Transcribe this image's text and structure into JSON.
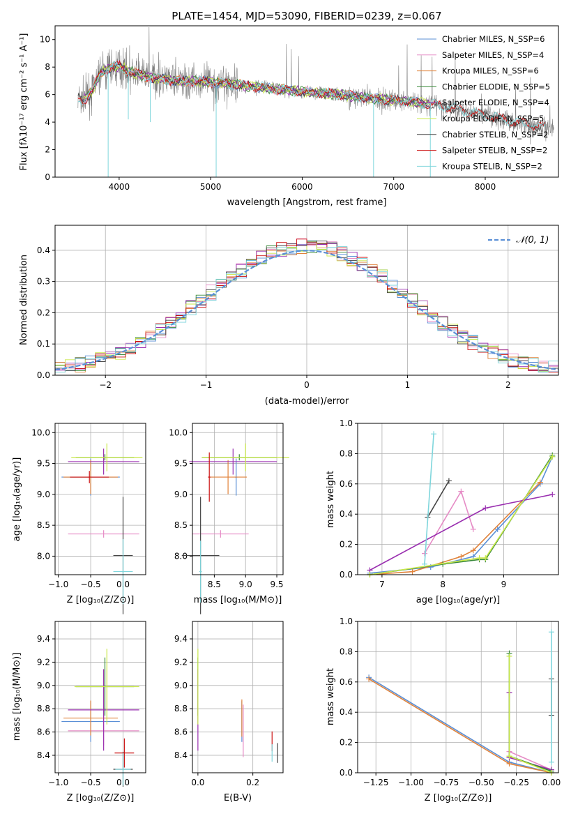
{
  "colors": {
    "chab_miles": "#5a8fd6",
    "salp_miles": "#e68cc6",
    "krou_miles": "#e0823a",
    "chab_elodie": "#3a8a3a",
    "salp_elodie": "#9a2fb0",
    "krou_elodie": "#c9e84a",
    "chab_stelib": "#444444",
    "salp_stelib": "#cc1111",
    "krou_stelib": "#7fd6dc",
    "data": "#808080",
    "normal": "#5a8fd6"
  },
  "chart_data": [
    {
      "id": "spectrum",
      "type": "line",
      "title": "PLATE=1454, MJD=53090, FIBERID=0239, z=0.067",
      "xlabel": "wavelength [Angstrom, rest frame]",
      "ylabel": "Flux [fλ10⁻¹⁷ erg cm⁻² s⁻¹ A⁻¹]",
      "xlim": [
        3300,
        8800
      ],
      "ylim": [
        0,
        11
      ],
      "xticks": [
        "4000",
        "5000",
        "6000",
        "7000",
        "8000"
      ],
      "yticks": [
        "0",
        "2",
        "4",
        "6",
        "8",
        "10"
      ],
      "legend_position": "top-right",
      "legend": [
        "Chabrier MILES, N_SSP=6",
        "Salpeter MILES, N_SSP=4",
        "Kroupa MILES, N_SSP=6",
        "Chabrier ELODIE, N_SSP=5",
        "Salpeter ELODIE, N_SSP=4",
        "Kroupa ELODIE, N_SSP=5",
        "Chabrier STELIB, N_SSP=2",
        "Salpeter STELIB, N_SSP=2",
        "Kroupa STELIB, N_SSP=2"
      ],
      "continuum": {
        "x": [
          3550,
          3600,
          3700,
          3800,
          3900,
          4000,
          4100,
          4300,
          4500,
          4700,
          5000,
          5300,
          5600,
          6000,
          6400,
          6800,
          7200,
          7400,
          7600,
          8000,
          8400,
          8800
        ],
        "y": [
          5.7,
          5.5,
          6.2,
          7.6,
          7.9,
          8.1,
          7.7,
          7.3,
          7.1,
          7.0,
          6.9,
          6.7,
          6.5,
          6.2,
          6.0,
          5.7,
          5.5,
          5.3,
          5.1,
          4.5,
          3.9,
          3.5
        ]
      }
    },
    {
      "id": "residuals",
      "type": "histogram",
      "xlabel": "(data-model)/error",
      "ylabel": "Normed distribution",
      "xlim": [
        -2.5,
        2.5
      ],
      "ylim": [
        0,
        0.48
      ],
      "xticks": [
        "−2",
        "−1",
        "0",
        "1",
        "2"
      ],
      "yticks": [
        "0.0",
        "0.1",
        "0.2",
        "0.3",
        "0.4"
      ],
      "legend_position": "top-right",
      "legend": [
        "𝒩(0, 1)"
      ],
      "bin_width": 0.1
    },
    {
      "id": "age_vs_Z",
      "type": "scatter",
      "xlabel": "Z [log₁₀(Z/Z⊙)]",
      "ylabel": "age  [log₁₀(age/yr)]",
      "xlim": [
        -1.05,
        0.35
      ],
      "ylim": [
        7.7,
        10.15
      ],
      "xticks": [
        "−1.0",
        "−0.5",
        "0.0"
      ],
      "yticks": [
        "8.0",
        "8.5",
        "9.0",
        "9.5",
        "10.0"
      ],
      "points": [
        {
          "k": "chab_miles",
          "x": -0.5,
          "y": 9.28,
          "xe": 0.45,
          "ye": 0.6
        },
        {
          "k": "salp_miles",
          "x": -0.3,
          "y": 8.36,
          "xe": 0.55,
          "ye": 0.12
        },
        {
          "k": "krou_miles",
          "x": -0.5,
          "y": 9.28,
          "xe": 0.42,
          "ye": 0.55
        },
        {
          "k": "chab_elodie",
          "x": -0.28,
          "y": 9.6,
          "xe": 0.45,
          "ye": 0.1
        },
        {
          "k": "salp_elodie",
          "x": -0.3,
          "y": 9.53,
          "xe": 0.55,
          "ye": 0.42
        },
        {
          "k": "krou_elodie",
          "x": -0.25,
          "y": 9.6,
          "xe": 0.55,
          "ye": 0.45
        },
        {
          "k": "chab_stelib",
          "x": 0.0,
          "y": 8.01,
          "xe": 0.15,
          "ye": 1.9
        },
        {
          "k": "salp_stelib",
          "x": -0.52,
          "y": 9.28,
          "xe": 0.3,
          "ye": 0.2
        },
        {
          "k": "krou_stelib",
          "x": 0.0,
          "y": 7.75,
          "xe": 0.15,
          "ye": 1.05
        }
      ]
    },
    {
      "id": "age_vs_mass",
      "type": "scatter",
      "xlabel": "mass [log₁₀(M/M⊙)]",
      "ylabel": "",
      "xlim": [
        8.15,
        9.6
      ],
      "ylim": [
        7.7,
        10.15
      ],
      "xticks": [
        "8.5",
        "9.0",
        "9.5"
      ],
      "yticks": [
        "8.0",
        "8.5",
        "9.0",
        "9.5",
        "10.0"
      ],
      "points": [
        {
          "k": "chab_miles",
          "x": 8.85,
          "y": 9.28,
          "xe": 0.02,
          "ye": 0.6
        },
        {
          "k": "salp_miles",
          "x": 8.6,
          "y": 8.36,
          "xe": 0.45,
          "ye": 0.12
        },
        {
          "k": "krou_miles",
          "x": 8.72,
          "y": 9.28,
          "xe": 0.3,
          "ye": 0.55
        },
        {
          "k": "chab_elodie",
          "x": 8.9,
          "y": 9.6,
          "xe": 0.6,
          "ye": 0.1
        },
        {
          "k": "salp_elodie",
          "x": 8.8,
          "y": 9.53,
          "xe": 0.7,
          "ye": 0.42
        },
        {
          "k": "krou_elodie",
          "x": 9.0,
          "y": 9.6,
          "xe": 0.7,
          "ye": 0.45
        },
        {
          "k": "chab_stelib",
          "x": 8.28,
          "y": 8.01,
          "xe": 0.3,
          "ye": 1.9
        },
        {
          "k": "salp_stelib",
          "x": 8.42,
          "y": 9.28,
          "xe": 0.02,
          "ye": 0.8
        },
        {
          "k": "krou_stelib",
          "x": 8.28,
          "y": 7.75,
          "xe": 0.02,
          "ye": 1.0
        }
      ]
    },
    {
      "id": "weight_vs_age",
      "type": "line",
      "xlabel": "age  [log₁₀(age/yr)]",
      "ylabel": "mass weight",
      "xlim": [
        6.6,
        9.9
      ],
      "ylim": [
        0,
        1
      ],
      "xticks": [
        "7",
        "8",
        "9"
      ],
      "yticks": [
        "0.0",
        "0.2",
        "0.4",
        "0.6",
        "0.8",
        "1.0"
      ],
      "series": [
        {
          "k": "chab_miles",
          "x": [
            6.8,
            7.8,
            8.5,
            8.9,
            9.6,
            9.8
          ],
          "y": [
            0.01,
            0.05,
            0.12,
            0.3,
            0.6,
            0.78
          ]
        },
        {
          "k": "krou_miles",
          "x": [
            6.8,
            7.5,
            8.3,
            8.5,
            9.6
          ],
          "y": [
            0.0,
            0.02,
            0.12,
            0.16,
            0.61
          ]
        },
        {
          "k": "salp_miles",
          "x": [
            7.7,
            8.3,
            8.5
          ],
          "y": [
            0.14,
            0.55,
            0.3
          ]
        },
        {
          "k": "chab_elodie",
          "x": [
            6.8,
            8.0,
            8.6,
            8.7,
            9.8
          ],
          "y": [
            0.0,
            0.07,
            0.1,
            0.1,
            0.79
          ]
        },
        {
          "k": "salp_elodie",
          "x": [
            6.8,
            8.7,
            9.8
          ],
          "y": [
            0.03,
            0.44,
            0.53
          ]
        },
        {
          "k": "krou_elodie",
          "x": [
            6.8,
            8.6,
            8.7,
            9.8
          ],
          "y": [
            0.0,
            0.11,
            0.11,
            0.78
          ]
        },
        {
          "k": "chab_stelib",
          "x": [
            7.75,
            8.1
          ],
          "y": [
            0.38,
            0.62
          ]
        },
        {
          "k": "krou_stelib",
          "x": [
            7.7,
            7.85
          ],
          "y": [
            0.07,
            0.93
          ]
        }
      ]
    },
    {
      "id": "mass_vs_Z",
      "type": "scatter",
      "xlabel": "Z [log₁₀(Z/Z⊙)]",
      "ylabel": "mass [log₁₀(M/M⊙)]",
      "xlim": [
        -1.05,
        0.35
      ],
      "ylim": [
        8.25,
        9.55
      ],
      "xticks": [
        "−1.0",
        "−0.5",
        "0.0"
      ],
      "yticks": [
        "8.4",
        "8.6",
        "8.8",
        "9.0",
        "9.2",
        "9.4"
      ],
      "points": [
        {
          "k": "chab_miles",
          "x": -0.5,
          "y": 8.69,
          "xe": 0.45,
          "ye": 0.35
        },
        {
          "k": "salp_miles",
          "x": -0.3,
          "y": 8.61,
          "xe": 0.55,
          "ye": 0.25
        },
        {
          "k": "krou_miles",
          "x": -0.5,
          "y": 8.72,
          "xe": 0.42,
          "ye": 0.3
        },
        {
          "k": "chab_elodie",
          "x": -0.28,
          "y": 8.99,
          "xe": 0.45,
          "ye": 0.5
        },
        {
          "k": "salp_elodie",
          "x": -0.3,
          "y": 8.79,
          "xe": 0.55,
          "ye": 0.7
        },
        {
          "k": "krou_elodie",
          "x": -0.25,
          "y": 8.99,
          "xe": 0.5,
          "ye": 0.65
        },
        {
          "k": "chab_stelib",
          "x": 0.0,
          "y": 8.28,
          "xe": 0.15,
          "ye": 0.3
        },
        {
          "k": "salp_stelib",
          "x": 0.02,
          "y": 8.42,
          "xe": 0.15,
          "ye": 0.25
        },
        {
          "k": "krou_stelib",
          "x": 0.0,
          "y": 8.28,
          "xe": 0.12,
          "ye": 0.28
        }
      ]
    },
    {
      "id": "mass_vs_ebv",
      "type": "scatter",
      "xlabel": "E(B-V)",
      "ylabel": "",
      "xlim": [
        -0.02,
        0.31
      ],
      "ylim": [
        8.25,
        9.55
      ],
      "xticks": [
        "0.0",
        "0.2"
      ],
      "yticks": [
        "8.4",
        "8.6",
        "8.8",
        "9.0",
        "9.2",
        "9.4"
      ],
      "points": [
        {
          "k": "chab_miles",
          "x": 0.16,
          "y": 8.69,
          "xe": 0.0,
          "ye": 0.35
        },
        {
          "k": "salp_miles",
          "x": 0.165,
          "y": 8.61,
          "xe": 0.0,
          "ye": 0.45
        },
        {
          "k": "krou_miles",
          "x": 0.16,
          "y": 8.72,
          "xe": 0.0,
          "ye": 0.32
        },
        {
          "k": "chab_elodie",
          "x": 0.0,
          "y": 8.99,
          "xe": 0.0,
          "ye": 0.5
        },
        {
          "k": "salp_elodie",
          "x": 0.0,
          "y": 8.79,
          "xe": 0.0,
          "ye": 0.7
        },
        {
          "k": "krou_elodie",
          "x": 0.0,
          "y": 8.99,
          "xe": 0.0,
          "ye": 0.65
        },
        {
          "k": "chab_stelib",
          "x": 0.29,
          "y": 8.42,
          "xe": 0.0,
          "ye": 0.17
        },
        {
          "k": "salp_stelib",
          "x": 0.27,
          "y": 8.52,
          "xe": 0.0,
          "ye": 0.17
        },
        {
          "k": "krou_stelib",
          "x": 0.27,
          "y": 8.42,
          "xe": 0.0,
          "ye": 0.15
        }
      ]
    },
    {
      "id": "weight_vs_Z",
      "type": "line",
      "xlabel": "Z [log₁₀(Z/Z⊙)]",
      "ylabel": "mass weight",
      "xlim": [
        -1.38,
        0.05
      ],
      "ylim": [
        0,
        1
      ],
      "xticks": [
        "−1.25",
        "−1.00",
        "−0.75",
        "−0.50",
        "−0.25",
        "0.00"
      ],
      "yticks": [
        "0.0",
        "0.2",
        "0.4",
        "0.6",
        "0.8",
        "1.0"
      ],
      "series": [
        {
          "k": "chab_miles",
          "x": [
            -1.3,
            -0.3,
            0.0
          ],
          "y": [
            0.63,
            0.07,
            0.0
          ]
        },
        {
          "k": "krou_miles",
          "x": [
            -1.3,
            -0.3,
            0.0
          ],
          "y": [
            0.62,
            0.06,
            0.0
          ]
        },
        {
          "k": "salp_miles",
          "x": [
            -0.3,
            0.0
          ],
          "y": [
            0.14,
            0.02
          ]
        },
        {
          "k": "salp_elodie",
          "x": [
            -0.3,
            -0.3,
            0.0
          ],
          "y": [
            0.53,
            0.1,
            0.02
          ]
        },
        {
          "k": "chab_elodie",
          "x": [
            -0.3,
            -0.3,
            0.0
          ],
          "y": [
            0.79,
            0.11,
            0.01
          ]
        },
        {
          "k": "krou_elodie",
          "x": [
            -0.3,
            -0.3,
            0.0
          ],
          "y": [
            0.77,
            0.11,
            0.0
          ]
        },
        {
          "k": "chab_stelib",
          "x": [
            0.0,
            0.0
          ],
          "y": [
            0.38,
            0.62
          ]
        },
        {
          "k": "krou_stelib",
          "x": [
            0.0,
            0.0
          ],
          "y": [
            0.07,
            0.93
          ]
        }
      ]
    }
  ]
}
